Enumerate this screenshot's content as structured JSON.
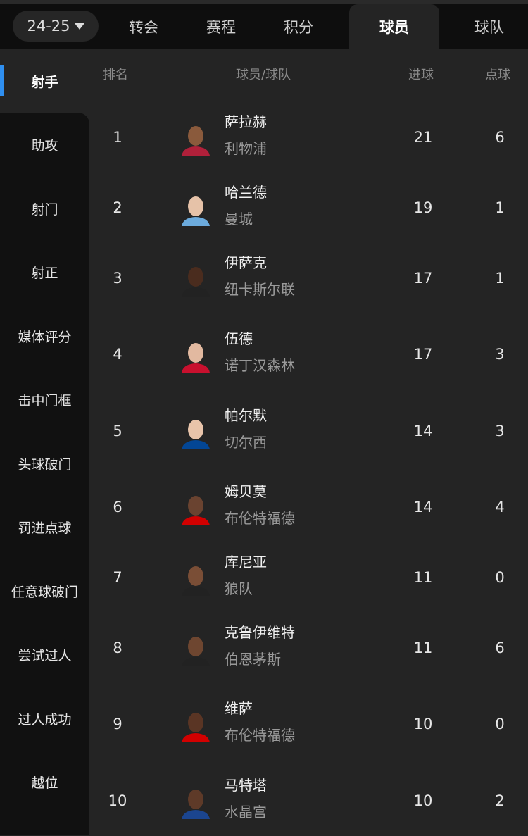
{
  "header": {
    "season": "24-25",
    "tabs": [
      "转会",
      "赛程",
      "积分",
      "球员",
      "球队"
    ],
    "active_tab": "球员"
  },
  "sidebar": {
    "items": [
      "射手",
      "助攻",
      "射门",
      "射正",
      "媒体评分",
      "击中门框",
      "头球破门",
      "罚进点球",
      "任意球破门",
      "尝试过人",
      "过人成功",
      "越位"
    ],
    "active": "射手",
    "accent": "#2f8ff0"
  },
  "table": {
    "headers": {
      "rank": "排名",
      "player": "球员/球队",
      "goals": "进球",
      "pens": "点球"
    },
    "rows": [
      {
        "rank": "1",
        "name": "萨拉赫",
        "team": "利物浦",
        "goals": "21",
        "pens": "6",
        "skin": "#8a5a3c",
        "kit": "#b0203a"
      },
      {
        "rank": "2",
        "name": "哈兰德",
        "team": "曼城",
        "goals": "19",
        "pens": "1",
        "skin": "#e6c2a8",
        "kit": "#6cabdd"
      },
      {
        "rank": "3",
        "name": "伊萨克",
        "team": "纽卡斯尔联",
        "goals": "17",
        "pens": "1",
        "skin": "#4a2c1e",
        "kit": "#222222"
      },
      {
        "rank": "4",
        "name": "伍德",
        "team": "诺丁汉森林",
        "goals": "17",
        "pens": "3",
        "skin": "#e2b9a0",
        "kit": "#c8102e"
      },
      {
        "rank": "5",
        "name": "帕尔默",
        "team": "切尔西",
        "goals": "14",
        "pens": "3",
        "skin": "#e8c4aa",
        "kit": "#034694"
      },
      {
        "rank": "6",
        "name": "姆贝莫",
        "team": "布伦特福德",
        "goals": "14",
        "pens": "4",
        "skin": "#6a4330",
        "kit": "#d20000"
      },
      {
        "rank": "7",
        "name": "库尼亚",
        "team": "狼队",
        "goals": "11",
        "pens": "0",
        "skin": "#7a4e36",
        "kit": "#222222"
      },
      {
        "rank": "8",
        "name": "克鲁伊维特",
        "team": "伯恩茅斯",
        "goals": "11",
        "pens": "6",
        "skin": "#6e4630",
        "kit": "#222222"
      },
      {
        "rank": "9",
        "name": "维萨",
        "team": "布伦特福德",
        "goals": "10",
        "pens": "0",
        "skin": "#5a3524",
        "kit": "#d20000"
      },
      {
        "rank": "10",
        "name": "马特塔",
        "team": "水晶宫",
        "goals": "10",
        "pens": "2",
        "skin": "#5e3a28",
        "kit": "#1b458f"
      }
    ]
  }
}
